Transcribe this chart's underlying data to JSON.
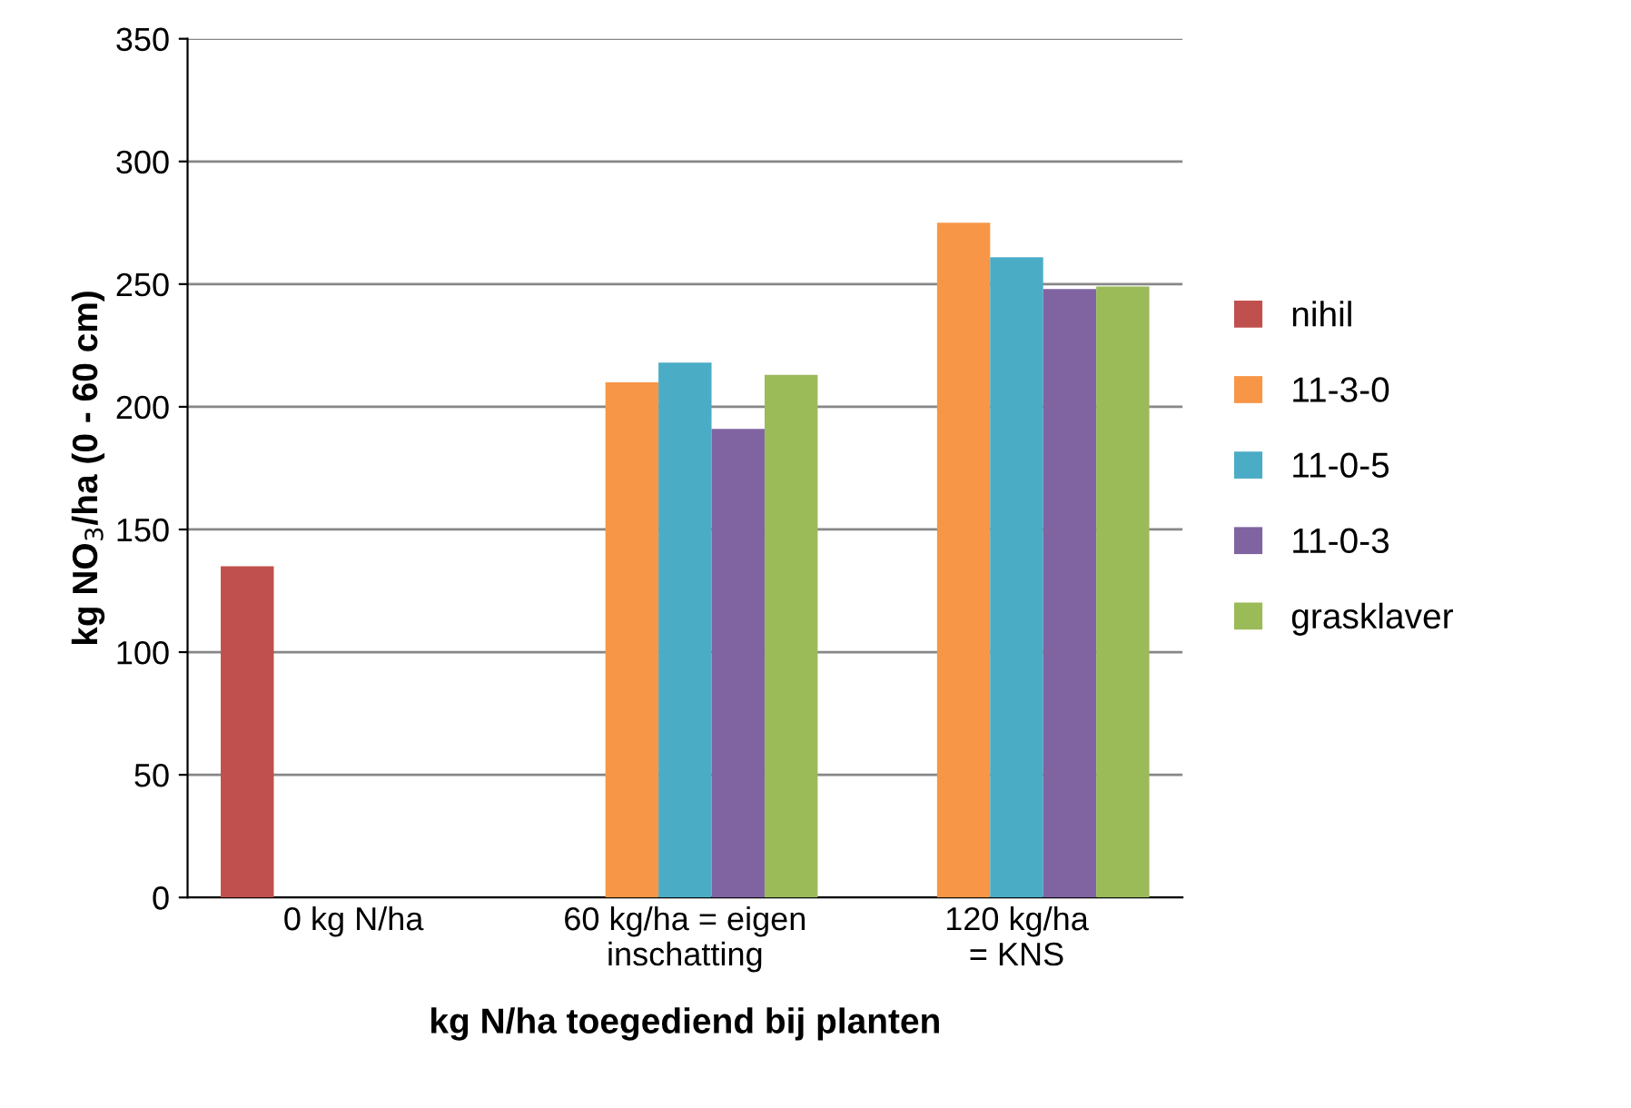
{
  "chart_data": {
    "type": "bar",
    "xlabel": "kg N/ha toegediend bij planten",
    "ylabel": "kg NO$_{3}$/ha (0 - 60 cm)",
    "categories": [
      "0 kg N/ha",
      "60 kg/ha = eigen\ninschatting",
      "120 kg/ha\n= KNS"
    ],
    "series": [
      {
        "name": "nihil",
        "color": "#c0504d",
        "values": [
          135,
          null,
          null
        ]
      },
      {
        "name": "11-3-0",
        "color": "#f79646",
        "values": [
          null,
          210,
          275
        ]
      },
      {
        "name": "11-0-5",
        "color": "#4bacc6",
        "values": [
          null,
          218,
          261
        ]
      },
      {
        "name": "11-0-3",
        "color": "#8064a2",
        "values": [
          null,
          191,
          248
        ]
      },
      {
        "name": "grasklaver",
        "color": "#9bbb59",
        "values": [
          null,
          213,
          249
        ]
      }
    ],
    "ylim": [
      0,
      350
    ],
    "yticks": [
      0,
      50,
      100,
      150,
      200,
      250,
      300,
      350
    ],
    "grid": "y",
    "legend": "right"
  }
}
